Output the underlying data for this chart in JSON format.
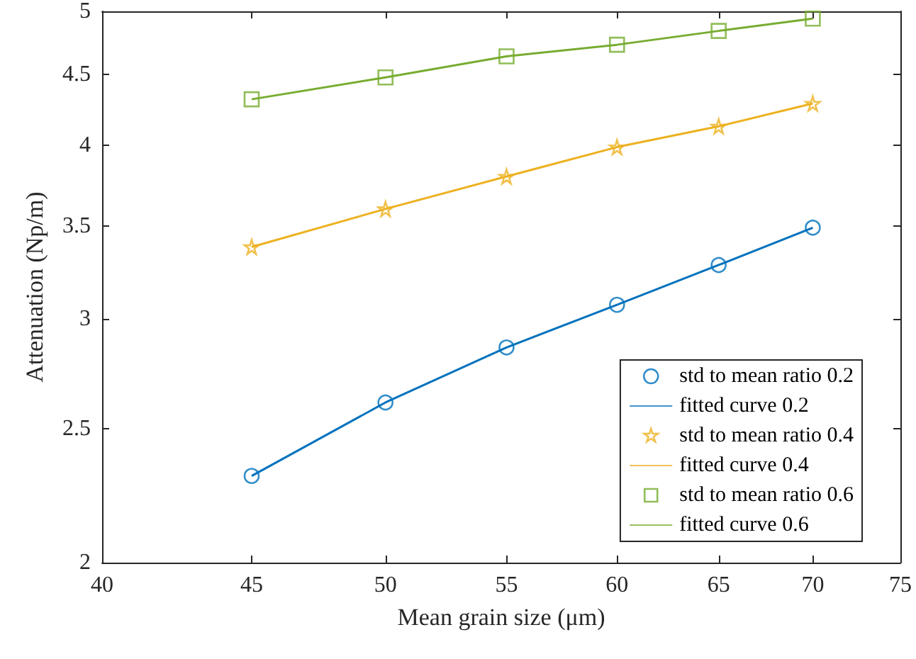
{
  "chart_data": {
    "type": "scatter",
    "xlabel": "Mean grain size (μm)",
    "ylabel": "Attenuation (Np/m)",
    "x": [
      45,
      50,
      55,
      60,
      65,
      70
    ],
    "series": [
      {
        "name": "std to mean ratio 0.2",
        "marker": "circle",
        "color": "#0072bd",
        "values": [
          2.31,
          2.61,
          2.86,
          3.07,
          3.28,
          3.49
        ]
      },
      {
        "name": "fitted curve 0.2",
        "type": "line",
        "color": "#0072bd",
        "values": [
          2.31,
          2.61,
          2.86,
          3.07,
          3.28,
          3.49
        ]
      },
      {
        "name": "std to mean ratio 0.4",
        "marker": "star",
        "color": "#edb120",
        "values": [
          3.38,
          3.6,
          3.8,
          3.99,
          4.13,
          4.29
        ]
      },
      {
        "name": "fitted curve 0.4",
        "type": "line",
        "color": "#edb120",
        "values": [
          3.38,
          3.6,
          3.8,
          3.99,
          4.13,
          4.29
        ]
      },
      {
        "name": "std to mean ratio 0.6",
        "marker": "square",
        "color": "#77ac30",
        "values": [
          4.32,
          4.48,
          4.64,
          4.73,
          4.84,
          4.94
        ]
      },
      {
        "name": "fitted curve 0.6",
        "type": "line",
        "color": "#77ac30",
        "values": [
          4.32,
          4.48,
          4.64,
          4.73,
          4.84,
          4.94
        ]
      }
    ],
    "log": "xy",
    "xlim": [
      40,
      75
    ],
    "xticks": [
      40,
      45,
      50,
      55,
      60,
      65,
      70,
      75
    ],
    "ylim": [
      2,
      5
    ],
    "yticks": [
      2,
      2.5,
      3,
      3.5,
      4,
      4.5,
      5
    ],
    "legend": "bottom right",
    "grid": false
  }
}
